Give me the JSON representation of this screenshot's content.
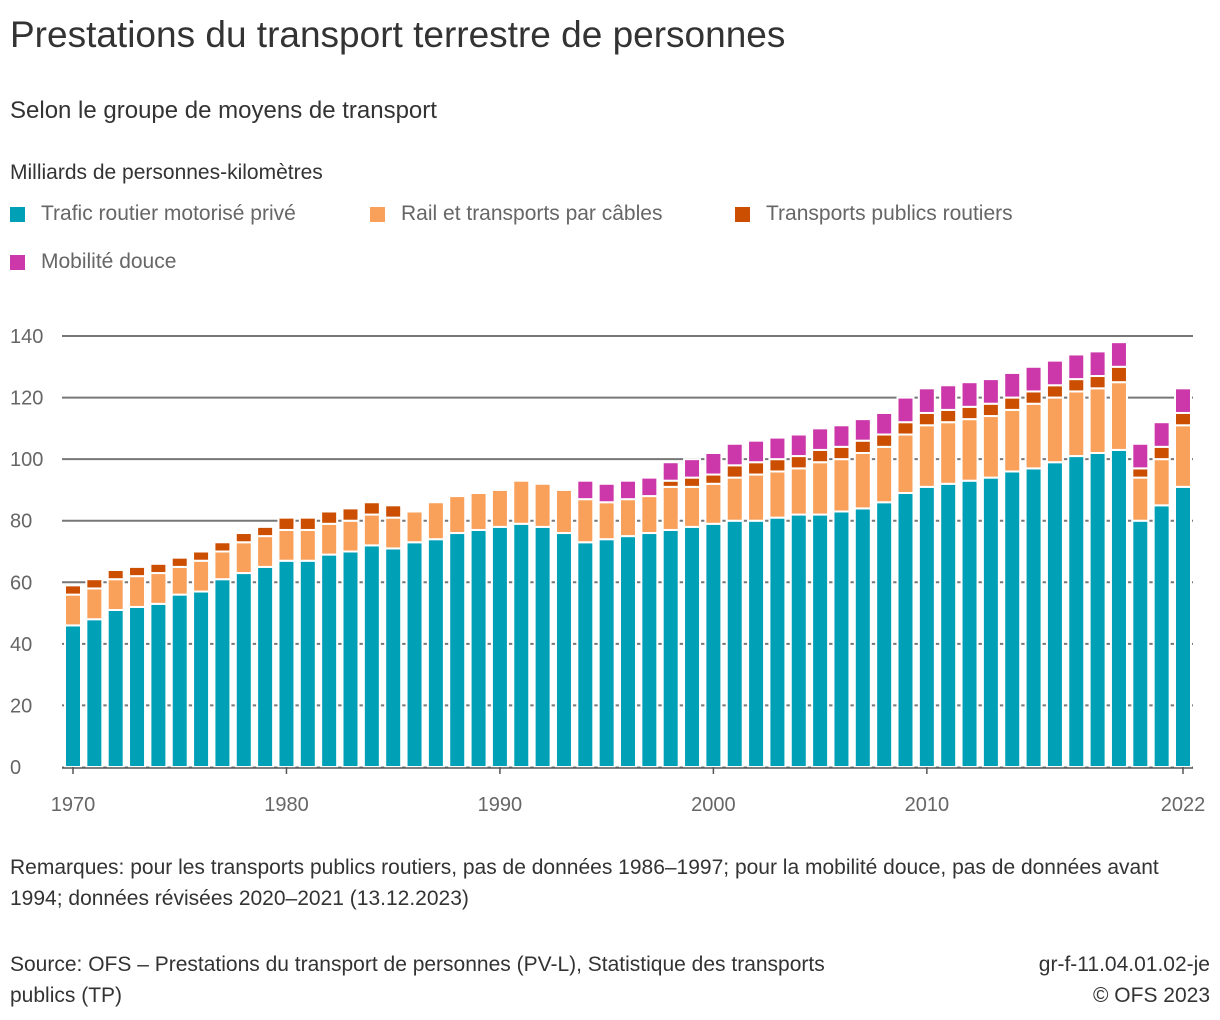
{
  "title": "Prestations du transport terrestre de personnes",
  "subtitle": "Selon le groupe de moyens de transport",
  "note": "Remarques: pour les transports publics routiers, pas de données 1986–1997; pour la mobilité douce, pas de données avant 1994; données révisées 2020–2021 (13.12.2023)",
  "source": "Source: OFS – Prestations du transport de personnes (PV-L), Statistique des transports publics (TP)",
  "ref_code": "gr-f-11.04.01.02-je",
  "copyright": "© OFS 2023",
  "chart_data": {
    "type": "bar",
    "stacked": true,
    "ylabel": "Milliards de personnes-kilomètres",
    "ylim": [
      0,
      140
    ],
    "yticks": [
      0,
      20,
      40,
      60,
      80,
      100,
      120,
      140
    ],
    "xticks": [
      1970,
      1980,
      1990,
      2000,
      2010,
      2022
    ],
    "grid": true,
    "legend_position": "top",
    "categories": [
      1970,
      1971,
      1972,
      1973,
      1974,
      1975,
      1976,
      1977,
      1978,
      1979,
      1980,
      1981,
      1982,
      1983,
      1984,
      1985,
      1986,
      1987,
      1988,
      1989,
      1990,
      1991,
      1992,
      1993,
      1994,
      1995,
      1996,
      1997,
      1998,
      1999,
      2000,
      2001,
      2002,
      2003,
      2004,
      2005,
      2006,
      2007,
      2008,
      2009,
      2010,
      2011,
      2012,
      2013,
      2014,
      2015,
      2016,
      2017,
      2018,
      2019,
      2020,
      2021,
      2022
    ],
    "series": [
      {
        "name": "Trafic routier motorisé privé",
        "color": "#00A1B7",
        "values": [
          46,
          48,
          51,
          52,
          53,
          56,
          57,
          61,
          63,
          65,
          67,
          67,
          69,
          70,
          72,
          71,
          73,
          74,
          76,
          77,
          78,
          79,
          78,
          76,
          73,
          74,
          75,
          76,
          77,
          78,
          79,
          80,
          80,
          81,
          82,
          82,
          83,
          84,
          86,
          89,
          91,
          92,
          93,
          94,
          96,
          97,
          99,
          101,
          102,
          103,
          80,
          85,
          91
        ]
      },
      {
        "name": "Rail et transports par câbles",
        "color": "#F9A05B",
        "values": [
          10,
          10,
          10,
          10,
          10,
          9,
          10,
          9,
          10,
          10,
          10,
          10,
          10,
          10,
          10,
          10,
          10,
          12,
          12,
          12,
          12,
          14,
          14,
          14,
          14,
          12,
          12,
          12,
          14,
          13,
          13,
          14,
          15,
          15,
          15,
          17,
          17,
          18,
          18,
          19,
          20,
          20,
          20,
          20,
          20,
          21,
          21,
          21,
          21,
          22,
          14,
          15,
          20
        ]
      },
      {
        "name": "Transports publics routiers",
        "color": "#CC4E00",
        "values": [
          3,
          3,
          3,
          3,
          3,
          3,
          3,
          3,
          3,
          3,
          4,
          4,
          4,
          4,
          4,
          4,
          null,
          null,
          null,
          null,
          null,
          null,
          null,
          null,
          null,
          null,
          null,
          null,
          2,
          3,
          3,
          4,
          4,
          4,
          4,
          4,
          4,
          4,
          4,
          4,
          4,
          4,
          4,
          4,
          4,
          4,
          4,
          4,
          4,
          5,
          3,
          4,
          4
        ]
      },
      {
        "name": "Mobilité douce",
        "color": "#CC38A9",
        "values": [
          null,
          null,
          null,
          null,
          null,
          null,
          null,
          null,
          null,
          null,
          null,
          null,
          null,
          null,
          null,
          null,
          null,
          null,
          null,
          null,
          null,
          null,
          null,
          null,
          6,
          6,
          6,
          6,
          6,
          6,
          7,
          7,
          7,
          7,
          7,
          7,
          7,
          7,
          7,
          8,
          8,
          8,
          8,
          8,
          8,
          8,
          8,
          8,
          8,
          8,
          8,
          8,
          8
        ]
      }
    ]
  }
}
